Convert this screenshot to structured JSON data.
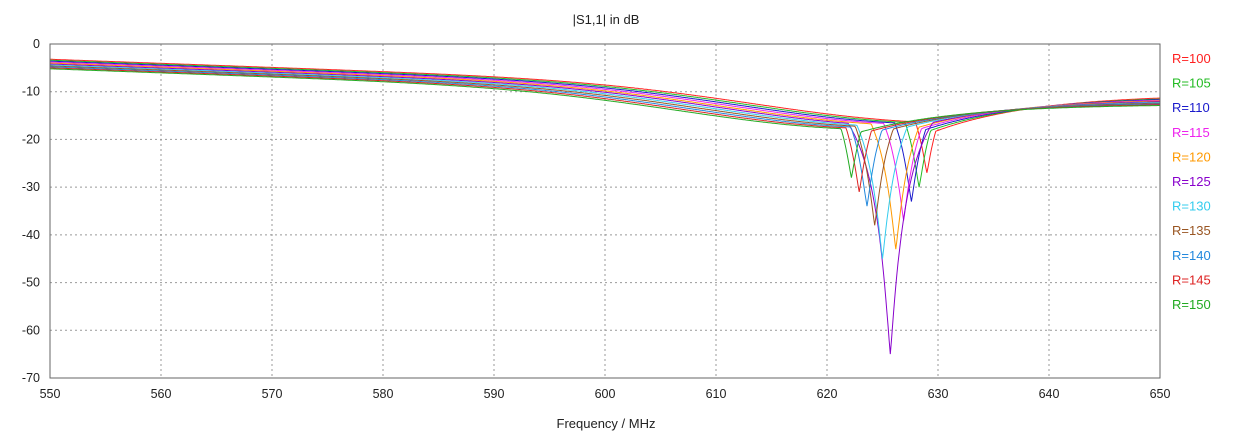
{
  "chart_data": {
    "type": "line",
    "title": "|S1,1| in dB",
    "xlabel": "Frequency / MHz",
    "ylabel": "",
    "xlim": [
      550,
      650
    ],
    "ylim": [
      -70,
      0
    ],
    "x_ticks": [
      550,
      560,
      570,
      580,
      590,
      600,
      610,
      620,
      630,
      640,
      650
    ],
    "y_ticks": [
      0,
      -10,
      -20,
      -30,
      -40,
      -50,
      -60,
      -70
    ],
    "grid": true,
    "legend_position": "right",
    "series": [
      {
        "name": "R=100",
        "color": "#ff2020",
        "f0": 629.0,
        "depth": -27,
        "lowStart": -3.2,
        "highEnd": -10.5
      },
      {
        "name": "R=105",
        "color": "#22bb22",
        "f0": 628.3,
        "depth": -30,
        "lowStart": -3.4,
        "highEnd": -10.8
      },
      {
        "name": "R=110",
        "color": "#1a1acc",
        "f0": 627.6,
        "depth": -33,
        "lowStart": -3.6,
        "highEnd": -11.0
      },
      {
        "name": "R=115",
        "color": "#ee22ee",
        "f0": 626.9,
        "depth": -37,
        "lowStart": -3.8,
        "highEnd": -11.2
      },
      {
        "name": "R=120",
        "color": "#ff9900",
        "f0": 626.2,
        "depth": -43,
        "lowStart": -4.0,
        "highEnd": -11.4
      },
      {
        "name": "R=125",
        "color": "#8800cc",
        "f0": 625.7,
        "depth": -65,
        "lowStart": -4.2,
        "highEnd": -11.6
      },
      {
        "name": "R=130",
        "color": "#33ccee",
        "f0": 625.0,
        "depth": -45,
        "lowStart": -4.4,
        "highEnd": -11.8
      },
      {
        "name": "R=135",
        "color": "#995522",
        "f0": 624.3,
        "depth": -38,
        "lowStart": -4.6,
        "highEnd": -12.0
      },
      {
        "name": "R=140",
        "color": "#2288dd",
        "f0": 623.6,
        "depth": -34,
        "lowStart": -4.8,
        "highEnd": -12.2
      },
      {
        "name": "R=145",
        "color": "#dd2222",
        "f0": 622.9,
        "depth": -31,
        "lowStart": -5.0,
        "highEnd": -12.4
      },
      {
        "name": "R=150",
        "color": "#22aa22",
        "f0": 622.2,
        "depth": -28,
        "lowStart": -5.2,
        "highEnd": -12.6
      }
    ]
  }
}
